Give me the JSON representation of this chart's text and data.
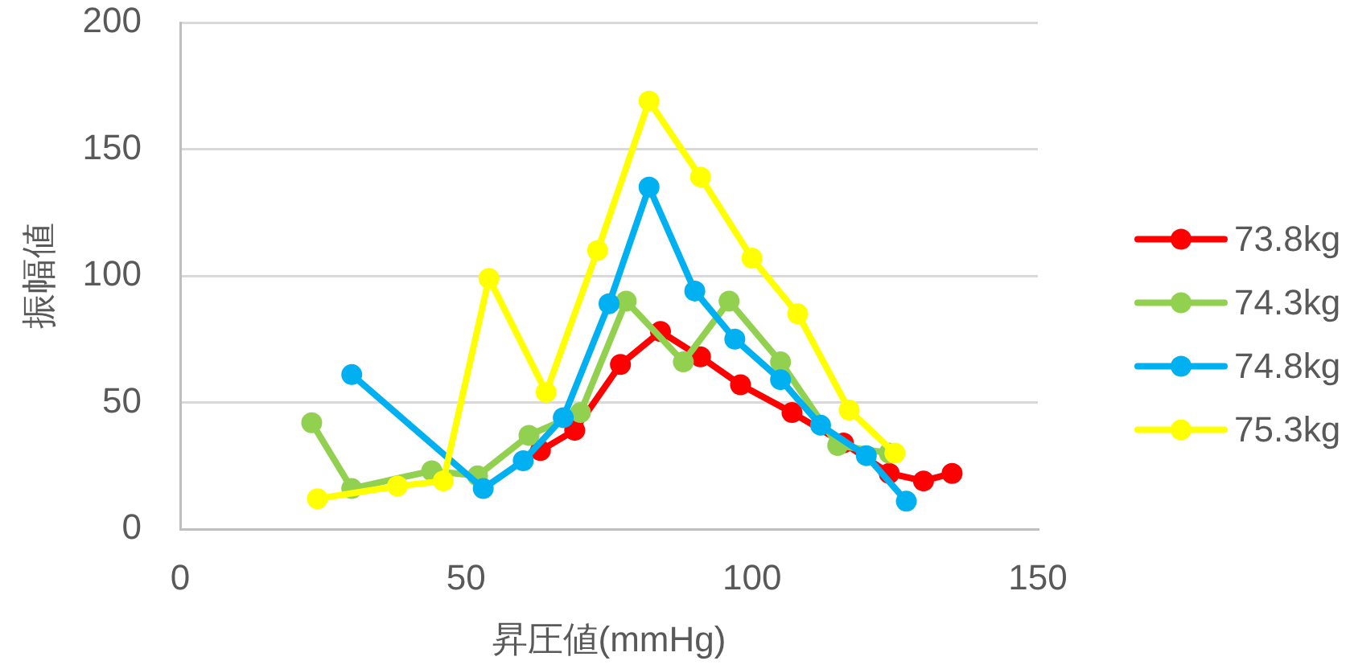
{
  "chart_data": {
    "type": "line",
    "xlabel": "昇圧値(mmHg)",
    "ylabel": "振幅値",
    "xlim": [
      0,
      150
    ],
    "xticks": [
      0,
      50,
      100,
      150
    ],
    "ylim": [
      0,
      200
    ],
    "yticks": [
      0,
      50,
      100,
      150,
      200
    ],
    "grid": "y",
    "legend": "right",
    "marker": "circle",
    "line_style": "solid",
    "series": [
      {
        "name": "73.8kg",
        "color": "#ff0000",
        "x": [
          63,
          69,
          77,
          84,
          91,
          98,
          107,
          116,
          124,
          130,
          135
        ],
        "values": [
          31,
          39,
          65,
          78,
          68,
          57,
          46,
          34,
          22,
          19,
          22
        ]
      },
      {
        "name": "74.3kg",
        "color": "#92d050",
        "x": [
          23,
          30,
          44,
          52,
          61,
          70,
          78,
          88,
          96,
          105,
          115,
          124
        ],
        "values": [
          42,
          16,
          23,
          21,
          37,
          46,
          90,
          66,
          90,
          66,
          33,
          30
        ]
      },
      {
        "name": "74.8kg",
        "color": "#00b0f0",
        "x": [
          30,
          53,
          60,
          67,
          75,
          82,
          90,
          97,
          105,
          112,
          120,
          127
        ],
        "values": [
          61,
          16,
          27,
          44,
          89,
          135,
          94,
          75,
          59,
          41,
          29,
          11
        ]
      },
      {
        "name": "75.3kg",
        "color": "#ffff00",
        "x": [
          24,
          38,
          46,
          54,
          64,
          73,
          82,
          91,
          100,
          108,
          117,
          125
        ],
        "values": [
          12,
          17,
          19,
          99,
          54,
          110,
          169,
          139,
          107,
          85,
          47,
          30
        ]
      }
    ]
  }
}
